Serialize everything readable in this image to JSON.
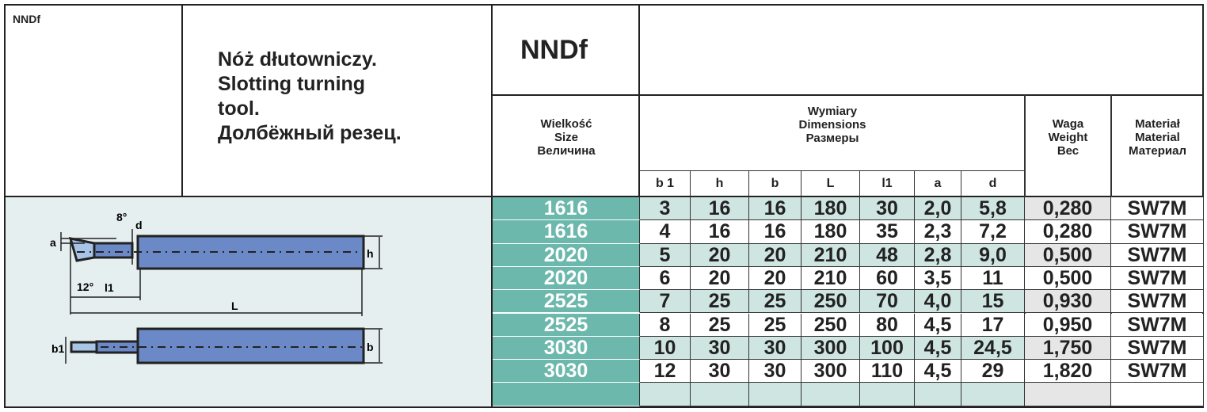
{
  "code_small": "NNDf",
  "title_lines": [
    "Nóż dłutowniczy.",
    "Slotting turning",
    "tool.",
    "Долбёжный резец."
  ],
  "code_large": "NNDf",
  "headers": {
    "size": [
      "Wielkość",
      "Size",
      "Величина"
    ],
    "dimensions": [
      "Wymiary",
      "Dimensions",
      "Размеры"
    ],
    "weight": [
      "Waga",
      "Weight",
      "Вес"
    ],
    "material": [
      "Materiał",
      "Material",
      "Материал"
    ],
    "dim_cols": [
      "b 1",
      "h",
      "b",
      "L",
      "l1",
      "a",
      "d"
    ]
  },
  "drawing_labels": {
    "a": "a",
    "d": "d",
    "angle_top": "8°",
    "angle_bottom": "12°",
    "l1": "l1",
    "L": "L",
    "h": "h",
    "b1": "b1",
    "b": "b"
  },
  "rows": [
    [
      "1616",
      "3",
      "16",
      "16",
      "180",
      "30",
      "2,0",
      "5,8",
      "0,280",
      "SW7M"
    ],
    [
      "1616",
      "4",
      "16",
      "16",
      "180",
      "35",
      "2,3",
      "7,2",
      "0,280",
      "SW7M"
    ],
    [
      "2020",
      "5",
      "20",
      "20",
      "210",
      "48",
      "2,8",
      "9,0",
      "0,500",
      "SW7M"
    ],
    [
      "2020",
      "6",
      "20",
      "20",
      "210",
      "60",
      "3,5",
      "11",
      "0,500",
      "SW7M"
    ],
    [
      "2525",
      "7",
      "25",
      "25",
      "250",
      "70",
      "4,0",
      "15",
      "0,930",
      "SW7M"
    ],
    [
      "2525",
      "8",
      "25",
      "25",
      "250",
      "80",
      "4,5",
      "17",
      "0,950",
      "SW7M"
    ],
    [
      "3030",
      "10",
      "30",
      "30",
      "300",
      "100",
      "4,5",
      "24,5",
      "1,750",
      "SW7M"
    ],
    [
      "3030",
      "12",
      "30",
      "30",
      "300",
      "110",
      "4,5",
      "29",
      "1,820",
      "SW7M"
    ]
  ],
  "colors": {
    "size_bg": "#6db8ac",
    "stripe": "#cfe5e1",
    "weight_stripe": "#e6e6e6",
    "tool_blue": "#6b89c6",
    "drawing_bg": "#e6efef"
  }
}
